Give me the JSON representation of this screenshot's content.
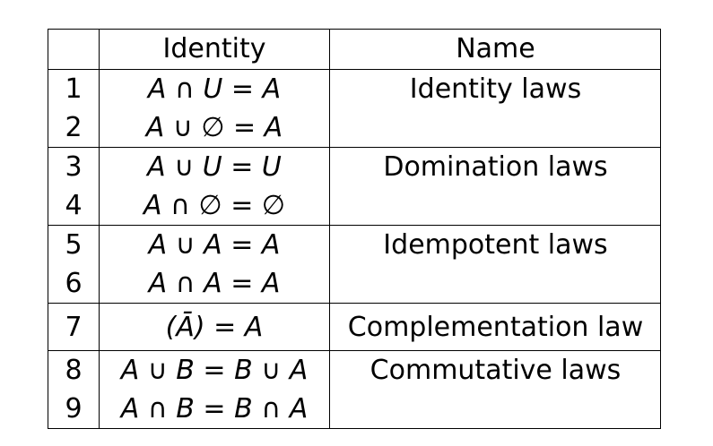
{
  "header": {
    "number": "",
    "identity": "Identity",
    "name": "Name"
  },
  "rows": [
    {
      "number": "1",
      "identity": "A ∩ U = A",
      "name": "Identity laws"
    },
    {
      "number": "2",
      "identity": "A ∪ ∅ = A",
      "name": ""
    },
    {
      "number": "3",
      "identity": "A ∪ U = U",
      "name": "Domination laws"
    },
    {
      "number": "4",
      "identity": "A ∩ ∅ = ∅",
      "name": ""
    },
    {
      "number": "5",
      "identity": "A ∪ A = A",
      "name": "Idempotent laws"
    },
    {
      "number": "6",
      "identity": "A ∩ A = A",
      "name": ""
    },
    {
      "number": "7",
      "identity": "(Ā) = A",
      "name": "Complementation law"
    },
    {
      "number": "8",
      "identity": "A ∪ B = B ∪ A",
      "name": "Commutative laws"
    },
    {
      "number": "9",
      "identity": "A ∩ B = B ∩ A",
      "name": ""
    }
  ]
}
